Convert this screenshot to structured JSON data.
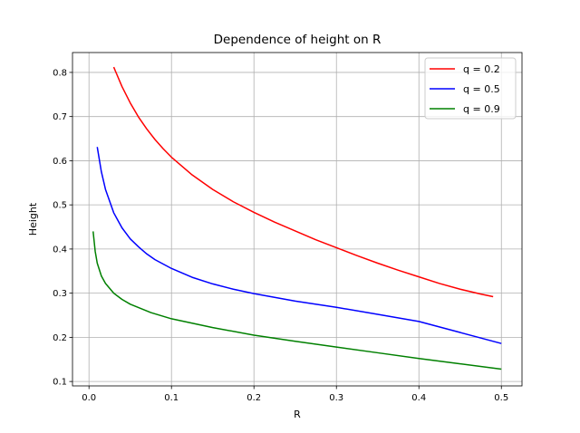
{
  "chart_data": {
    "type": "line",
    "title": "Dependence of height on R",
    "xlabel": "R",
    "ylabel": "Height",
    "xlim": [
      -0.02,
      0.525
    ],
    "ylim": [
      0.09,
      0.845
    ],
    "xticks": [
      0.0,
      0.1,
      0.2,
      0.3,
      0.4,
      0.5
    ],
    "xtick_labels": [
      "0.0",
      "0.1",
      "0.2",
      "0.3",
      "0.4",
      "0.5"
    ],
    "yticks": [
      0.1,
      0.2,
      0.3,
      0.4,
      0.5,
      0.6,
      0.7,
      0.8
    ],
    "ytick_labels": [
      "0.1",
      "0.2",
      "0.3",
      "0.4",
      "0.5",
      "0.6",
      "0.7",
      "0.8"
    ],
    "grid": true,
    "legend_position": "top-right",
    "series": [
      {
        "name": "q = 0.2",
        "color": "#ff0000",
        "x": [
          0.03,
          0.04,
          0.05,
          0.06,
          0.07,
          0.08,
          0.09,
          0.1,
          0.125,
          0.15,
          0.175,
          0.2,
          0.225,
          0.25,
          0.275,
          0.3,
          0.325,
          0.35,
          0.375,
          0.4,
          0.425,
          0.45,
          0.475,
          0.49
        ],
        "y": [
          0.812,
          0.768,
          0.731,
          0.699,
          0.672,
          0.648,
          0.627,
          0.608,
          0.568,
          0.535,
          0.507,
          0.483,
          0.461,
          0.441,
          0.421,
          0.403,
          0.385,
          0.368,
          0.352,
          0.337,
          0.322,
          0.309,
          0.298,
          0.292
        ]
      },
      {
        "name": "q = 0.5",
        "color": "#0000ff",
        "x": [
          0.01,
          0.015,
          0.02,
          0.03,
          0.04,
          0.05,
          0.06,
          0.07,
          0.08,
          0.1,
          0.125,
          0.15,
          0.175,
          0.2,
          0.25,
          0.3,
          0.35,
          0.4,
          0.45,
          0.5
        ],
        "y": [
          0.631,
          0.575,
          0.535,
          0.482,
          0.448,
          0.423,
          0.405,
          0.389,
          0.376,
          0.356,
          0.336,
          0.321,
          0.309,
          0.299,
          0.282,
          0.268,
          0.252,
          0.236,
          0.211,
          0.186
        ]
      },
      {
        "name": "q = 0.9",
        "color": "#008000",
        "x": [
          0.005,
          0.0075,
          0.01,
          0.015,
          0.02,
          0.03,
          0.04,
          0.05,
          0.075,
          0.1,
          0.15,
          0.2,
          0.25,
          0.3,
          0.35,
          0.4,
          0.45,
          0.5
        ],
        "y": [
          0.44,
          0.395,
          0.368,
          0.339,
          0.322,
          0.3,
          0.286,
          0.275,
          0.256,
          0.242,
          0.222,
          0.205,
          0.191,
          0.178,
          0.165,
          0.152,
          0.14,
          0.128
        ]
      }
    ]
  }
}
